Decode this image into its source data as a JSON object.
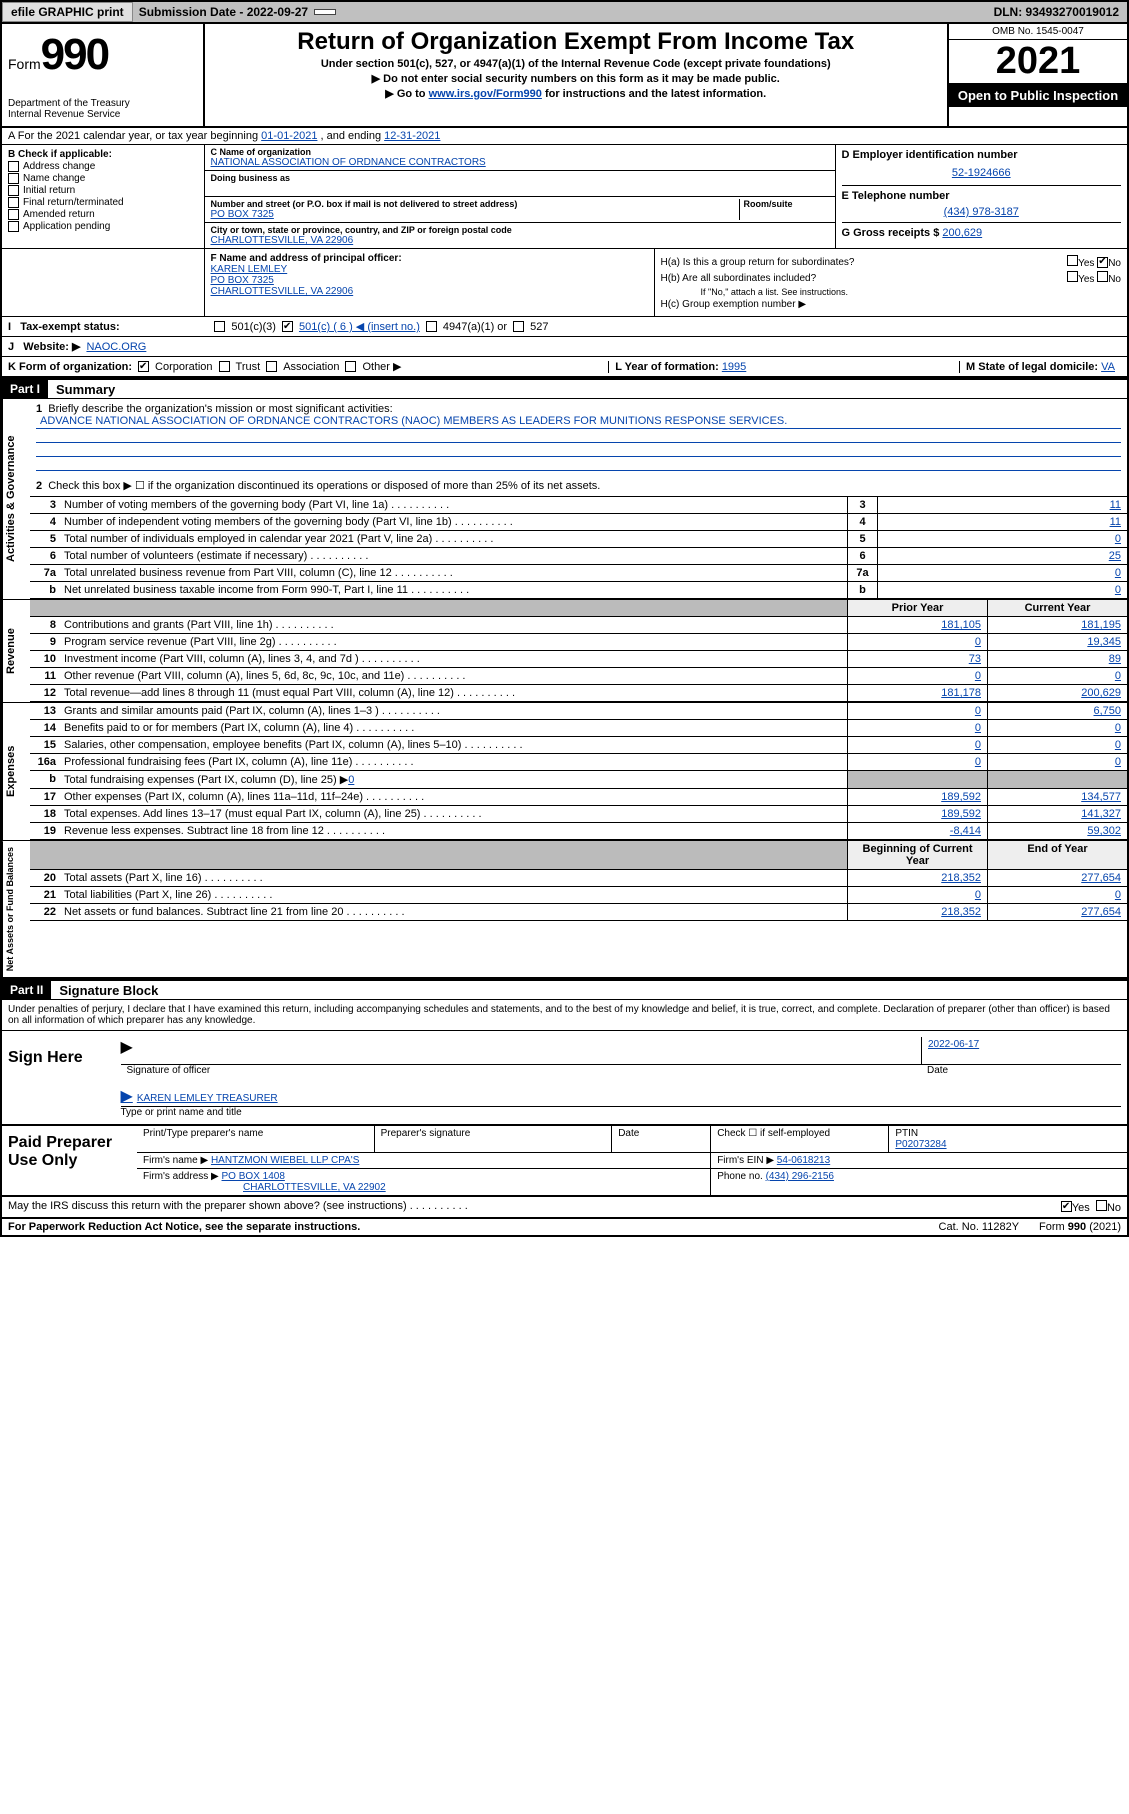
{
  "topbar": {
    "efile": "efile GRAPHIC print",
    "sub_label": "Submission Date - 2022-09-27",
    "dln": "DLN: 93493270019012"
  },
  "header": {
    "form_word": "Form",
    "form_num": "990",
    "dept": "Department of the Treasury\nInternal Revenue Service",
    "title": "Return of Organization Exempt From Income Tax",
    "sub1": "Under section 501(c), 527, or 4947(a)(1) of the Internal Revenue Code (except private foundations)",
    "sub2": "▶ Do not enter social security numbers on this form as it may be made public.",
    "sub3_pre": "▶ Go to ",
    "sub3_link": "www.irs.gov/Form990",
    "sub3_post": " for instructions and the latest information.",
    "omb": "OMB No. 1545-0047",
    "year": "2021",
    "open_pub": "Open to Public Inspection"
  },
  "lineA": {
    "pre": "A For the 2021 calendar year, or tax year beginning ",
    "begin": "01-01-2021",
    "mid": " , and ending ",
    "end": "12-31-2021"
  },
  "boxB": {
    "title": "B Check if applicable:",
    "opts": [
      "Address change",
      "Name change",
      "Initial return",
      "Final return/terminated",
      "Amended return",
      "Application pending"
    ]
  },
  "boxC": {
    "name_label": "C Name of organization",
    "name": "NATIONAL ASSOCIATION OF ORDNANCE CONTRACTORS",
    "dba_label": "Doing business as",
    "street_label": "Number and street (or P.O. box if mail is not delivered to street address)",
    "room_label": "Room/suite",
    "street": "PO BOX 7325",
    "city_label": "City or town, state or province, country, and ZIP or foreign postal code",
    "city": "CHARLOTTESVILLE, VA  22906"
  },
  "boxD": {
    "label": "D Employer identification number",
    "val": "52-1924666"
  },
  "boxE": {
    "label": "E Telephone number",
    "val": "(434) 978-3187"
  },
  "boxG": {
    "label": "G Gross receipts $",
    "val": "200,629"
  },
  "boxF": {
    "label": "F Name and address of principal officer:",
    "name": "KAREN LEMLEY",
    "street": "PO BOX 7325",
    "city": "CHARLOTTESVILLE, VA  22906"
  },
  "boxH": {
    "ha": "H(a)  Is this a group return for subordinates?",
    "hb": "H(b)  Are all subordinates included?",
    "hb_note": "If \"No,\" attach a list. See instructions.",
    "hc": "H(c)  Group exemption number ▶",
    "yes": "Yes",
    "no": "No"
  },
  "taxExempt": {
    "label": "Tax-exempt status:",
    "c3": "501(c)(3)",
    "c": "501(c) ( 6 ) ◀ (insert no.)",
    "a": "4947(a)(1) or",
    "527": "527"
  },
  "website": {
    "label": "Website: ▶",
    "val": "NAOC.ORG"
  },
  "formOrg": {
    "label": "K Form of organization:",
    "opts": [
      "Corporation",
      "Trust",
      "Association",
      "Other ▶"
    ],
    "year_label": "L Year of formation:",
    "year": "1995",
    "state_label": "M State of legal domicile:",
    "state": "VA"
  },
  "partI": {
    "hdr": "Part I",
    "title": "Summary"
  },
  "summary": {
    "l1_pre": "Briefly describe the organization's mission or most significant activities:",
    "l1_mission": "ADVANCE NATIONAL ASSOCIATION OF ORDNANCE CONTRACTORS (NAOC) MEMBERS AS LEADERS FOR MUNITIONS RESPONSE SERVICES.",
    "l2": "Check this box ▶ ☐  if the organization discontinued its operations or disposed of more than 25% of its net assets.",
    "gov_rows": [
      {
        "n": "3",
        "d": "Number of voting members of the governing body (Part VI, line 1a)",
        "v": "11"
      },
      {
        "n": "4",
        "d": "Number of independent voting members of the governing body (Part VI, line 1b)",
        "v": "11"
      },
      {
        "n": "5",
        "d": "Total number of individuals employed in calendar year 2021 (Part V, line 2a)",
        "v": "0"
      },
      {
        "n": "6",
        "d": "Total number of volunteers (estimate if necessary)",
        "v": "25"
      },
      {
        "n": "7a",
        "d": "Total unrelated business revenue from Part VIII, column (C), line 12",
        "v": "0"
      },
      {
        "n": "b",
        "d": "Net unrelated business taxable income from Form 990-T, Part I, line 11",
        "v": "0"
      }
    ],
    "col_hdr_prior": "Prior Year",
    "col_hdr_curr": "Current Year",
    "rev_rows": [
      {
        "n": "8",
        "d": "Contributions and grants (Part VIII, line 1h)",
        "p": "181,105",
        "c": "181,195"
      },
      {
        "n": "9",
        "d": "Program service revenue (Part VIII, line 2g)",
        "p": "0",
        "c": "19,345"
      },
      {
        "n": "10",
        "d": "Investment income (Part VIII, column (A), lines 3, 4, and 7d )",
        "p": "73",
        "c": "89"
      },
      {
        "n": "11",
        "d": "Other revenue (Part VIII, column (A), lines 5, 6d, 8c, 9c, 10c, and 11e)",
        "p": "0",
        "c": "0"
      },
      {
        "n": "12",
        "d": "Total revenue—add lines 8 through 11 (must equal Part VIII, column (A), line 12)",
        "p": "181,178",
        "c": "200,629"
      }
    ],
    "exp_rows": [
      {
        "n": "13",
        "d": "Grants and similar amounts paid (Part IX, column (A), lines 1–3 )",
        "p": "0",
        "c": "6,750"
      },
      {
        "n": "14",
        "d": "Benefits paid to or for members (Part IX, column (A), line 4)",
        "p": "0",
        "c": "0"
      },
      {
        "n": "15",
        "d": "Salaries, other compensation, employee benefits (Part IX, column (A), lines 5–10)",
        "p": "0",
        "c": "0"
      },
      {
        "n": "16a",
        "d": "Professional fundraising fees (Part IX, column (A), line 11e)",
        "p": "0",
        "c": "0"
      }
    ],
    "exp_16b_pre": "Total fundraising expenses (Part IX, column (D), line 25) ▶",
    "exp_16b_val": "0",
    "exp_rows2": [
      {
        "n": "17",
        "d": "Other expenses (Part IX, column (A), lines 11a–11d, 11f–24e)",
        "p": "189,592",
        "c": "134,577"
      },
      {
        "n": "18",
        "d": "Total expenses. Add lines 13–17 (must equal Part IX, column (A), line 25)",
        "p": "189,592",
        "c": "141,327"
      },
      {
        "n": "19",
        "d": "Revenue less expenses. Subtract line 18 from line 12",
        "p": "-8,414",
        "c": "59,302"
      }
    ],
    "na_hdr_begin": "Beginning of Current Year",
    "na_hdr_end": "End of Year",
    "na_rows": [
      {
        "n": "20",
        "d": "Total assets (Part X, line 16)",
        "p": "218,352",
        "c": "277,654"
      },
      {
        "n": "21",
        "d": "Total liabilities (Part X, line 26)",
        "p": "0",
        "c": "0"
      },
      {
        "n": "22",
        "d": "Net assets or fund balances. Subtract line 21 from line 20",
        "p": "218,352",
        "c": "277,654"
      }
    ]
  },
  "sideLabels": {
    "gov": "Activities & Governance",
    "rev": "Revenue",
    "exp": "Expenses",
    "na": "Net Assets or Fund Balances"
  },
  "partII": {
    "hdr": "Part II",
    "title": "Signature Block"
  },
  "penalties": "Under penalties of perjury, I declare that I have examined this return, including accompanying schedules and statements, and to the best of my knowledge and belief, it is true, correct, and complete. Declaration of preparer (other than officer) is based on all information of which preparer has any knowledge.",
  "sign": {
    "here": "Sign Here",
    "sig_label": "Signature of officer",
    "date": "2022-06-17",
    "date_label": "Date",
    "name": "KAREN LEMLEY TREASURER",
    "name_label": "Type or print name and title"
  },
  "prep": {
    "title": "Paid Preparer Use Only",
    "r1": [
      "Print/Type preparer's name",
      "Preparer's signature",
      "Date"
    ],
    "check_label": "Check ☐ if self-employed",
    "ptin_label": "PTIN",
    "ptin": "P02073284",
    "firm_name_label": "Firm's name   ▶",
    "firm_name": "HANTZMON WIEBEL LLP CPA'S",
    "firm_ein_label": "Firm's EIN ▶",
    "firm_ein": "54-0618213",
    "firm_addr_label": "Firm's address ▶",
    "firm_addr": "PO BOX 1408",
    "firm_city": "CHARLOTTESVILLE, VA  22902",
    "phone_label": "Phone no.",
    "phone": "(434) 296-2156"
  },
  "discuss": {
    "q": "May the IRS discuss this return with the preparer shown above? (see instructions)",
    "yes": "Yes",
    "no": "No"
  },
  "footer": {
    "left": "For Paperwork Reduction Act Notice, see the separate instructions.",
    "mid": "Cat. No. 11282Y",
    "right": "Form 990 (2021)"
  }
}
